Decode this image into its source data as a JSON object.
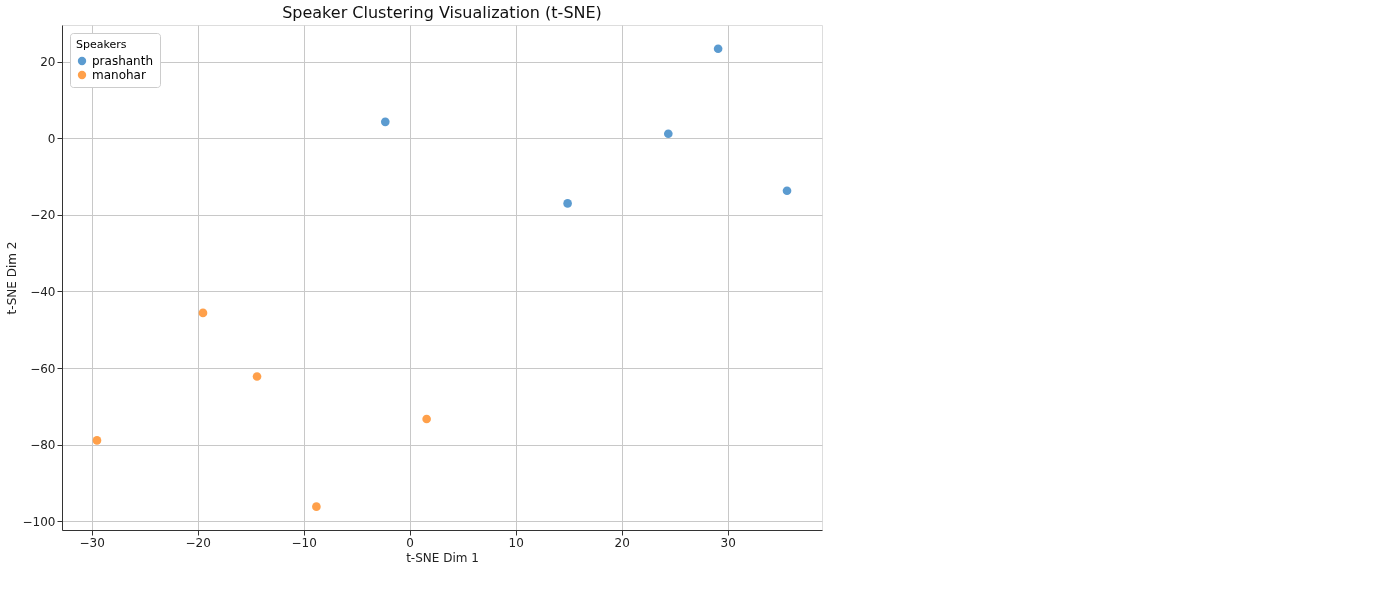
{
  "chart_data": {
    "type": "scatter",
    "title": "Speaker Clustering Visualization (t-SNE)",
    "xlabel": "t-SNE Dim 1",
    "ylabel": "t-SNE Dim 2",
    "legend_title": "Speakers",
    "series": [
      {
        "name": "prashanth",
        "color": "#5b9bd0",
        "x": [
          -2.3,
          24.4,
          29.1,
          14.9,
          35.6
        ],
        "values": [
          4.3,
          1.2,
          23.4,
          -17.0,
          -13.7
        ]
      },
      {
        "name": "manohar",
        "color": "#ffa04a",
        "x": [
          -29.5,
          -19.5,
          -14.4,
          -8.8,
          1.6
        ],
        "values": [
          -78.9,
          -45.6,
          -62.2,
          -96.2,
          -73.3
        ]
      }
    ],
    "xlim": [
      -32.8,
      38.9
    ],
    "ylim": [
      -102.3,
      29.6
    ],
    "xticks": [
      -30,
      -20,
      -10,
      0,
      10,
      20,
      30
    ],
    "yticks": [
      -100,
      -80,
      -60,
      -40,
      -20,
      0,
      20
    ],
    "grid": true,
    "legend": "top left",
    "marker": "circle"
  }
}
